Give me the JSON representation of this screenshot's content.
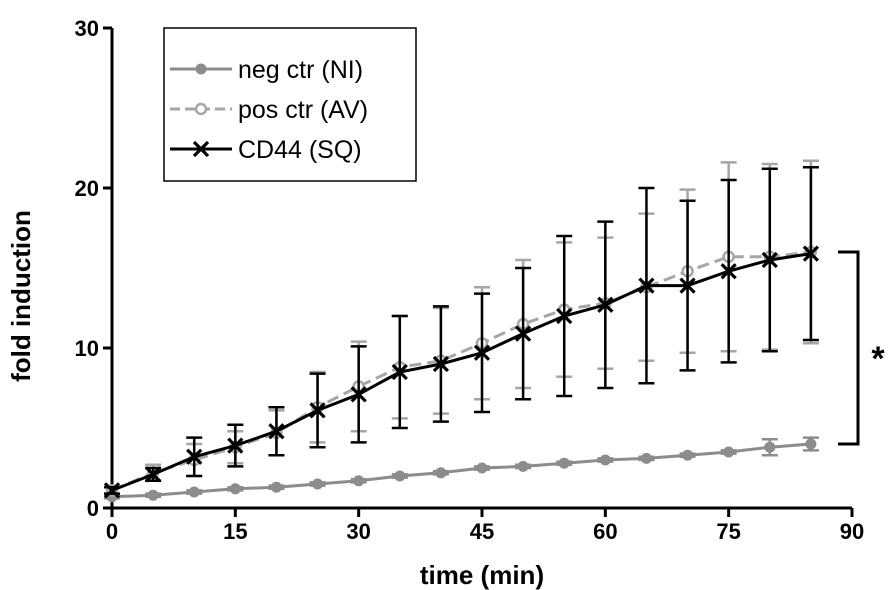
{
  "chart_data": {
    "type": "line",
    "xlabel": "time (min)",
    "ylabel": "fold induction",
    "xlim": [
      0,
      90
    ],
    "ylim": [
      0,
      30
    ],
    "xticks": [
      "0",
      "15",
      "30",
      "45",
      "60",
      "75",
      "90"
    ],
    "yticks": [
      "0",
      "10",
      "20",
      "30"
    ],
    "grid": false,
    "legend": "top-left",
    "x": [
      0,
      5,
      10,
      15,
      20,
      25,
      30,
      35,
      40,
      45,
      50,
      55,
      60,
      65,
      70,
      75,
      80,
      85
    ],
    "series": [
      {
        "name": "neg ctr (NI)",
        "color": "#8c8c8c",
        "marker": "filled-circle",
        "linestyle": "solid",
        "values": [
          0.7,
          0.8,
          1.0,
          1.2,
          1.3,
          1.5,
          1.7,
          2.0,
          2.2,
          2.5,
          2.6,
          2.8,
          3.0,
          3.1,
          3.3,
          3.5,
          3.8,
          4.0
        ],
        "errors": [
          0.1,
          0.1,
          0.1,
          0.1,
          0.1,
          0.1,
          0.1,
          0.1,
          0.1,
          0.1,
          0.1,
          0.1,
          0.1,
          0.1,
          0.1,
          0.1,
          0.5,
          0.4
        ]
      },
      {
        "name": "pos ctr (AV)",
        "color": "#a6a6a6",
        "marker": "open-circle",
        "linestyle": "dashed",
        "values": [
          1.1,
          2.2,
          3.0,
          3.8,
          4.7,
          6.3,
          7.6,
          8.8,
          9.2,
          10.3,
          11.5,
          12.4,
          12.8,
          13.8,
          14.8,
          15.7,
          15.7,
          16.0
        ],
        "errors": [
          0.2,
          0.5,
          1.0,
          1.0,
          1.4,
          2.2,
          2.8,
          3.2,
          3.3,
          3.5,
          4.0,
          4.2,
          4.1,
          4.6,
          5.1,
          5.9,
          5.8,
          5.7
        ]
      },
      {
        "name": "CD44 (SQ)",
        "color": "#000000",
        "marker": "x",
        "linestyle": "solid",
        "values": [
          1.1,
          2.1,
          3.2,
          3.9,
          4.8,
          6.1,
          7.1,
          8.5,
          9.0,
          9.7,
          10.9,
          12.0,
          12.7,
          13.9,
          13.9,
          14.8,
          15.5,
          15.9
        ],
        "errors": [
          0.2,
          0.4,
          1.2,
          1.3,
          1.5,
          2.3,
          3.0,
          3.5,
          3.6,
          3.7,
          4.1,
          5.0,
          5.2,
          6.1,
          5.3,
          5.7,
          5.7,
          5.4
        ]
      }
    ],
    "annotations": [
      {
        "text": "*",
        "type": "significance-bracket",
        "y_from": 4.0,
        "y_to": 16.0
      }
    ]
  }
}
